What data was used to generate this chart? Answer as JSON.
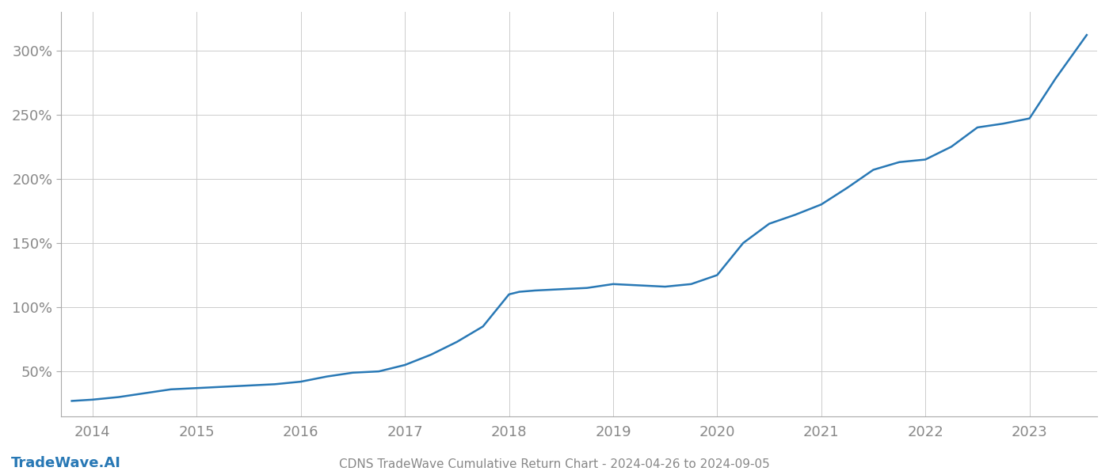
{
  "title": "CDNS TradeWave Cumulative Return Chart - 2024-04-26 to 2024-09-05",
  "watermark": "TradeWave.AI",
  "line_color": "#2878b5",
  "background_color": "#ffffff",
  "grid_color": "#cccccc",
  "x_years": [
    2014,
    2015,
    2016,
    2017,
    2018,
    2019,
    2020,
    2021,
    2022,
    2023
  ],
  "data_x": [
    2013.8,
    2014.0,
    2014.25,
    2014.5,
    2014.75,
    2015.0,
    2015.25,
    2015.5,
    2015.75,
    2016.0,
    2016.25,
    2016.5,
    2016.75,
    2017.0,
    2017.25,
    2017.5,
    2017.75,
    2018.0,
    2018.1,
    2018.25,
    2018.5,
    2018.75,
    2019.0,
    2019.25,
    2019.5,
    2019.75,
    2020.0,
    2020.25,
    2020.5,
    2020.75,
    2021.0,
    2021.25,
    2021.5,
    2021.75,
    2022.0,
    2022.25,
    2022.5,
    2022.75,
    2023.0,
    2023.25,
    2023.55
  ],
  "data_y": [
    27,
    28,
    30,
    33,
    36,
    37,
    38,
    39,
    40,
    42,
    46,
    49,
    50,
    55,
    63,
    73,
    85,
    110,
    112,
    113,
    114,
    115,
    118,
    117,
    116,
    118,
    125,
    150,
    165,
    172,
    180,
    193,
    207,
    213,
    215,
    225,
    240,
    243,
    247,
    278,
    312
  ],
  "ylim": [
    15,
    330
  ],
  "yticks": [
    50,
    100,
    150,
    200,
    250,
    300
  ],
  "xlim": [
    2013.7,
    2023.65
  ],
  "title_fontsize": 11,
  "tick_fontsize": 13,
  "watermark_fontsize": 13,
  "line_width": 1.8
}
